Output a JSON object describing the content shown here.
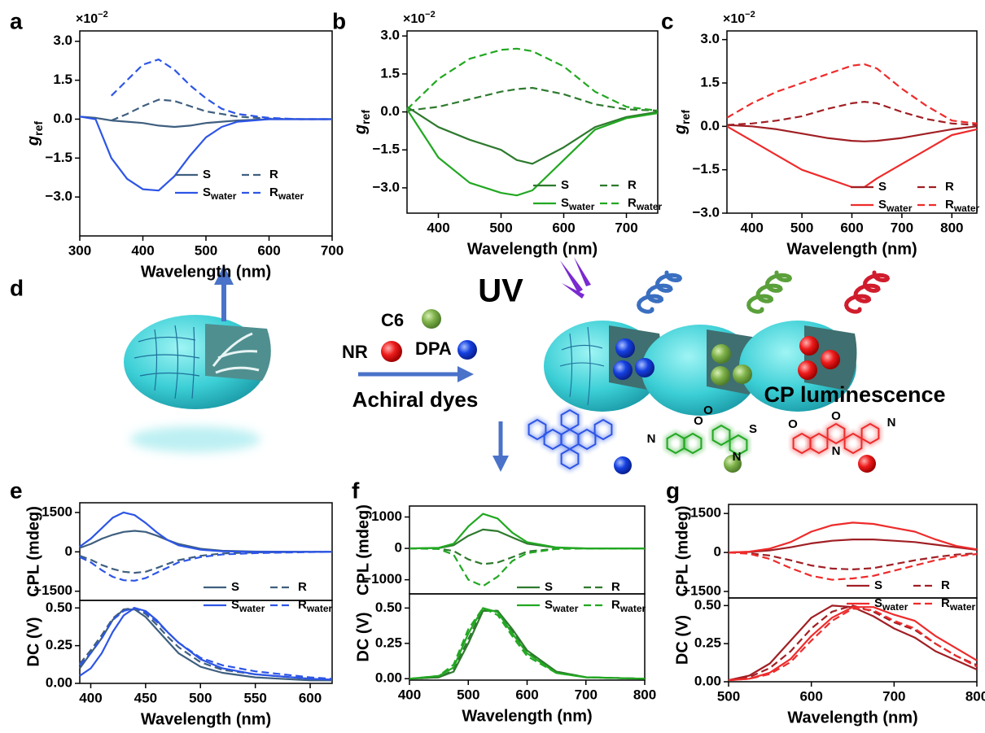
{
  "chart_data": [
    {
      "type": "line",
      "panel": "a",
      "ylabel": "g",
      "ylabel_sub": "ref",
      "multiplier": "×10",
      "multiplier_exp": "−2",
      "xlabel": "Wavelength (nm)",
      "x": [
        300,
        325,
        350,
        375,
        400,
        425,
        450,
        475,
        500,
        525,
        550,
        600,
        650,
        700
      ],
      "xlim": [
        300,
        700
      ],
      "xticks": [
        300,
        400,
        500,
        600,
        700
      ],
      "ylim": [
        -4.5,
        3.4
      ],
      "yticks": [
        {
          "value": 3,
          "label": "3.0"
        },
        {
          "value": 1.5,
          "label": "1.5"
        },
        {
          "value": 0,
          "label": "0.0"
        },
        {
          "value": -1.5,
          "label": "−1.5"
        },
        {
          "value": -3,
          "label": "−3.0"
        }
      ],
      "legend": "lower right",
      "series": [
        {
          "name": "S",
          "color": "#3f5f7f",
          "dash": false,
          "values": [
            0.1,
            0.05,
            -0.05,
            -0.1,
            -0.15,
            -0.25,
            -0.3,
            -0.25,
            -0.15,
            -0.1,
            -0.05,
            0,
            0,
            0
          ]
        },
        {
          "name": "R",
          "color": "#3f5f7f",
          "dash": true,
          "values": [
            null,
            null,
            -0.05,
            0.2,
            0.5,
            0.75,
            0.7,
            0.5,
            0.3,
            0.2,
            0.1,
            0.02,
            0,
            0
          ]
        },
        {
          "name": "S",
          "sub": "water",
          "color": "#2d55e6",
          "dash": false,
          "values": [
            0.1,
            0,
            -1.5,
            -2.3,
            -2.7,
            -2.75,
            -2.2,
            -1.4,
            -0.7,
            -0.3,
            -0.1,
            0,
            0,
            0
          ]
        },
        {
          "name": "R",
          "sub": "water",
          "color": "#2d55e6",
          "dash": true,
          "values": [
            null,
            null,
            0.9,
            1.5,
            2.1,
            2.3,
            1.9,
            1.3,
            0.8,
            0.4,
            0.2,
            0.05,
            0,
            0
          ]
        }
      ]
    },
    {
      "type": "line",
      "panel": "b",
      "ylabel": "g",
      "ylabel_sub": "ref",
      "multiplier": "×10",
      "multiplier_exp": "−2",
      "xlabel": "Wavelength (nm)",
      "x": [
        350,
        400,
        450,
        500,
        525,
        550,
        600,
        650,
        700,
        750
      ],
      "xlim": [
        350,
        750
      ],
      "xticks": [
        400,
        500,
        600,
        700
      ],
      "ylim": [
        -4.0,
        3.2
      ],
      "yticks": [
        {
          "value": 3,
          "label": "3.0"
        },
        {
          "value": 1.5,
          "label": "1.5"
        },
        {
          "value": 0,
          "label": "0.0"
        },
        {
          "value": -1.5,
          "label": "−1.5"
        },
        {
          "value": -3,
          "label": "−3.0"
        }
      ],
      "legend": "lower right",
      "series": [
        {
          "name": "S",
          "color": "#2e7a2e",
          "dash": false,
          "values": [
            0.2,
            -0.6,
            -1.1,
            -1.5,
            -1.9,
            -2.05,
            -1.4,
            -0.6,
            -0.2,
            0
          ]
        },
        {
          "name": "R",
          "color": "#2e7a2e",
          "dash": true,
          "values": [
            0.05,
            0.2,
            0.5,
            0.8,
            0.9,
            0.95,
            0.7,
            0.3,
            0.1,
            0.05
          ]
        },
        {
          "name": "S",
          "sub": "water",
          "color": "#22a822",
          "dash": false,
          "values": [
            0.1,
            -1.8,
            -2.8,
            -3.2,
            -3.3,
            -3.1,
            -1.9,
            -0.7,
            -0.25,
            -0.05
          ]
        },
        {
          "name": "R",
          "sub": "water",
          "color": "#22a822",
          "dash": true,
          "values": [
            0.1,
            1.3,
            2.1,
            2.45,
            2.5,
            2.4,
            1.8,
            0.8,
            0.2,
            0.05
          ]
        }
      ]
    },
    {
      "type": "line",
      "panel": "c",
      "ylabel": "g",
      "ylabel_sub": "ref",
      "multiplier": "×10",
      "multiplier_exp": "−2",
      "xlabel": "Wavelength (nm)",
      "x": [
        350,
        400,
        450,
        500,
        550,
        600,
        625,
        650,
        700,
        750,
        800,
        850
      ],
      "xlim": [
        350,
        850
      ],
      "xticks": [
        400,
        500,
        600,
        700,
        800
      ],
      "ylim": [
        -3.0,
        3.3
      ],
      "yticks": [
        {
          "value": 3,
          "label": "3.0"
        },
        {
          "value": 1.5,
          "label": "1.5"
        },
        {
          "value": 0,
          "label": "0.0"
        },
        {
          "value": -1.5,
          "label": "−1.5"
        },
        {
          "value": -3,
          "label": "−3.0"
        }
      ],
      "legend": "lower right",
      "series": [
        {
          "name": "S",
          "color": "#a01f24",
          "dash": false,
          "values": [
            0.05,
            0,
            -0.1,
            -0.25,
            -0.4,
            -0.5,
            -0.52,
            -0.5,
            -0.4,
            -0.25,
            -0.1,
            0
          ]
        },
        {
          "name": "R",
          "color": "#a01f24",
          "dash": true,
          "values": [
            0.05,
            0.1,
            0.2,
            0.35,
            0.6,
            0.8,
            0.85,
            0.8,
            0.5,
            0.25,
            0.1,
            0.05
          ]
        },
        {
          "name": "S",
          "sub": "water",
          "color": "#ee2b2b",
          "dash": false,
          "values": [
            0,
            -0.5,
            -1.0,
            -1.5,
            -1.8,
            -2.1,
            -2.1,
            -1.8,
            -1.3,
            -0.8,
            -0.3,
            -0.1
          ]
        },
        {
          "name": "R",
          "sub": "water",
          "color": "#ee2b2b",
          "dash": true,
          "values": [
            0.3,
            0.8,
            1.2,
            1.5,
            1.8,
            2.1,
            2.15,
            2.0,
            1.3,
            0.7,
            0.2,
            0.1
          ]
        }
      ]
    },
    {
      "type": "line",
      "panel": "e",
      "ylabel": "CPL (mdeg)",
      "x": [
        390,
        400,
        410,
        420,
        430,
        440,
        450,
        460,
        470,
        480,
        500,
        520,
        550,
        600,
        620
      ],
      "xlim": [
        390,
        620
      ],
      "ylim": [
        -1850,
        1870
      ],
      "yticks": [
        1500,
        0,
        {
          "value": -1500,
          "label": "−1500"
        }
      ],
      "legend": "lower right",
      "series": [
        {
          "name": "S",
          "color": "#3f5f7f",
          "dash": false,
          "values": [
            150,
            300,
            500,
            650,
            760,
            800,
            760,
            620,
            450,
            300,
            120,
            40,
            10,
            0,
            0
          ]
        },
        {
          "name": "R",
          "color": "#3f5f7f",
          "dash": true,
          "values": [
            -150,
            -300,
            -500,
            -650,
            -760,
            -800,
            -760,
            -620,
            -460,
            -320,
            -150,
            -60,
            -20,
            0,
            0
          ]
        },
        {
          "name": "S",
          "sub": "water",
          "color": "#2d55e6",
          "dash": false,
          "values": [
            200,
            500,
            900,
            1300,
            1500,
            1400,
            1100,
            750,
            450,
            250,
            80,
            20,
            0,
            0,
            0
          ]
        },
        {
          "name": "R",
          "sub": "water",
          "color": "#2d55e6",
          "dash": true,
          "values": [
            -200,
            -400,
            -700,
            -950,
            -1080,
            -1100,
            -1000,
            -800,
            -600,
            -400,
            -200,
            -100,
            -50,
            -10,
            0
          ]
        }
      ]
    },
    {
      "type": "line",
      "ylabel": "DC (V)",
      "xlabel": "Wavelength (nm)",
      "x": [
        390,
        400,
        410,
        420,
        430,
        440,
        450,
        460,
        470,
        480,
        500,
        520,
        550,
        600,
        620
      ],
      "xlim": [
        390,
        620
      ],
      "xticks": [
        400,
        450,
        500,
        550,
        600
      ],
      "ylim": [
        0,
        0.55
      ],
      "yticks": [
        {
          "value": 0,
          "label": "0.00"
        },
        {
          "value": 0.25,
          "label": "0.25"
        },
        {
          "value": 0.5,
          "label": "0.50"
        }
      ],
      "series": [
        {
          "color": "#3f5f7f",
          "dash": false,
          "values": [
            0.1,
            0.2,
            0.3,
            0.42,
            0.49,
            0.49,
            0.44,
            0.36,
            0.28,
            0.2,
            0.11,
            0.07,
            0.04,
            0.02,
            0.02
          ]
        },
        {
          "color": "#3f5f7f",
          "dash": true,
          "values": [
            0.13,
            0.22,
            0.32,
            0.43,
            0.49,
            0.5,
            0.46,
            0.39,
            0.31,
            0.24,
            0.14,
            0.09,
            0.06,
            0.03,
            0.02
          ]
        },
        {
          "color": "#2d55e6",
          "dash": false,
          "values": [
            0.05,
            0.1,
            0.2,
            0.34,
            0.45,
            0.5,
            0.48,
            0.42,
            0.34,
            0.27,
            0.16,
            0.1,
            0.06,
            0.03,
            0.025
          ]
        },
        {
          "color": "#2d55e6",
          "dash": true,
          "values": [
            0.12,
            0.2,
            0.3,
            0.42,
            0.48,
            0.5,
            0.47,
            0.41,
            0.34,
            0.27,
            0.17,
            0.12,
            0.08,
            0.04,
            0.03
          ]
        }
      ]
    },
    {
      "type": "line",
      "panel": "f",
      "ylabel": "CPL (mdeg)",
      "x": [
        400,
        450,
        475,
        500,
        525,
        550,
        575,
        600,
        650,
        700,
        800
      ],
      "xlim": [
        400,
        800
      ],
      "ylim": [
        -1450,
        1350
      ],
      "yticks": [
        1000,
        0,
        {
          "value": -1000,
          "label": "−1000"
        }
      ],
      "legend": "lower right",
      "series": [
        {
          "name": "S",
          "color": "#2e7a2e",
          "dash": false,
          "values": [
            0,
            10,
            100,
            400,
            600,
            550,
            350,
            150,
            20,
            0,
            0
          ]
        },
        {
          "name": "R",
          "color": "#2e7a2e",
          "dash": true,
          "values": [
            0,
            -10,
            -80,
            -350,
            -500,
            -450,
            -280,
            -100,
            -10,
            0,
            0
          ]
        },
        {
          "name": "S",
          "sub": "water",
          "color": "#22a822",
          "dash": false,
          "values": [
            0,
            20,
            150,
            700,
            1100,
            950,
            500,
            200,
            30,
            0,
            0
          ]
        },
        {
          "name": "R",
          "sub": "water",
          "color": "#22a822",
          "dash": true,
          "values": [
            0,
            -20,
            -200,
            -1000,
            -1200,
            -900,
            -400,
            -150,
            -20,
            0,
            0
          ]
        }
      ]
    },
    {
      "type": "line",
      "ylabel": "DC (V)",
      "xlabel": "Wavelength (nm)",
      "x": [
        400,
        450,
        475,
        500,
        525,
        550,
        575,
        600,
        650,
        700,
        800
      ],
      "xlim": [
        400,
        800
      ],
      "xticks": [
        400,
        500,
        600,
        700,
        800
      ],
      "ylim": [
        -0.01,
        0.6
      ],
      "yticks": [
        {
          "value": 0,
          "label": "0.00"
        },
        {
          "value": 0.25,
          "label": "0.25"
        },
        {
          "value": 0.5,
          "label": "0.50"
        }
      ],
      "series": [
        {
          "color": "#2e7a2e",
          "dash": false,
          "values": [
            0,
            0.01,
            0.05,
            0.25,
            0.48,
            0.48,
            0.35,
            0.2,
            0.05,
            0.01,
            0
          ]
        },
        {
          "color": "#2e7a2e",
          "dash": true,
          "values": [
            0,
            0.01,
            0.06,
            0.28,
            0.49,
            0.48,
            0.34,
            0.19,
            0.05,
            0.01,
            0
          ]
        },
        {
          "color": "#22a822",
          "dash": false,
          "values": [
            0,
            0.02,
            0.08,
            0.32,
            0.5,
            0.47,
            0.32,
            0.18,
            0.04,
            0.01,
            0
          ]
        },
        {
          "color": "#22a822",
          "dash": true,
          "values": [
            0,
            0.02,
            0.1,
            0.35,
            0.5,
            0.45,
            0.3,
            0.16,
            0.04,
            0.01,
            0
          ]
        }
      ]
    },
    {
      "type": "line",
      "panel": "g",
      "ylabel": "CPL (mdeg)",
      "x": [
        500,
        525,
        550,
        575,
        600,
        625,
        650,
        675,
        700,
        725,
        750,
        775,
        800
      ],
      "xlim": [
        500,
        800
      ],
      "ylim": [
        -1750,
        1850
      ],
      "yticks": [
        1500,
        0,
        {
          "value": -1500,
          "label": "−1500"
        }
      ],
      "legend": "lower right",
      "series": [
        {
          "name": "S",
          "color": "#a01f24",
          "dash": false,
          "values": [
            0,
            20,
            80,
            200,
            350,
            450,
            500,
            500,
            450,
            400,
            300,
            200,
            100
          ]
        },
        {
          "name": "R",
          "color": "#a01f24",
          "dash": true,
          "values": [
            0,
            -30,
            -120,
            -300,
            -500,
            -620,
            -650,
            -600,
            -450,
            -300,
            -180,
            -80,
            -30
          ]
        },
        {
          "name": "S",
          "sub": "water",
          "color": "#ee2b2b",
          "dash": false,
          "values": [
            0,
            30,
            150,
            400,
            800,
            1050,
            1150,
            1100,
            950,
            800,
            500,
            250,
            120
          ]
        },
        {
          "name": "R",
          "sub": "water",
          "color": "#ee2b2b",
          "dash": true,
          "values": [
            0,
            -50,
            -250,
            -600,
            -900,
            -1050,
            -1000,
            -900,
            -700,
            -500,
            -300,
            -150,
            -60
          ]
        }
      ]
    },
    {
      "type": "line",
      "ylabel": "DC (V)",
      "xlabel": "Wavelength (nm)",
      "x": [
        500,
        525,
        550,
        575,
        600,
        625,
        650,
        675,
        700,
        725,
        750,
        775,
        800
      ],
      "xlim": [
        500,
        800
      ],
      "xticks": [
        500,
        600,
        700,
        800
      ],
      "ylim": [
        0,
        0.55
      ],
      "yticks": [
        {
          "value": 0,
          "label": "0.00"
        },
        {
          "value": 0.25,
          "label": "0.25"
        },
        {
          "value": 0.5,
          "label": "0.50"
        }
      ],
      "series": [
        {
          "color": "#a01f24",
          "dash": false,
          "values": [
            0.01,
            0.04,
            0.12,
            0.27,
            0.42,
            0.5,
            0.49,
            0.43,
            0.35,
            0.29,
            0.2,
            0.14,
            0.08
          ]
        },
        {
          "color": "#a01f24",
          "dash": true,
          "values": [
            0.01,
            0.03,
            0.09,
            0.2,
            0.35,
            0.46,
            0.5,
            0.46,
            0.39,
            0.34,
            0.25,
            0.17,
            0.11
          ]
        },
        {
          "color": "#ee2b2b",
          "dash": false,
          "values": [
            0.01,
            0.02,
            0.06,
            0.15,
            0.3,
            0.42,
            0.49,
            0.49,
            0.44,
            0.4,
            0.3,
            0.22,
            0.14
          ]
        },
        {
          "color": "#ee2b2b",
          "dash": true,
          "values": [
            0.01,
            0.02,
            0.05,
            0.13,
            0.27,
            0.4,
            0.48,
            0.47,
            0.4,
            0.35,
            0.25,
            0.17,
            0.1
          ]
        }
      ]
    }
  ],
  "diagram": {
    "panel": "d",
    "uv": "UV",
    "dyes": [
      "C6",
      "NR",
      "DPA"
    ],
    "arrow_label": "Achiral dyes",
    "result": "CP luminescence",
    "atoms": {
      "c6": [
        "N",
        "O",
        "O",
        "S",
        "N"
      ],
      "nr": [
        "O",
        "O",
        "N",
        "N"
      ]
    }
  }
}
